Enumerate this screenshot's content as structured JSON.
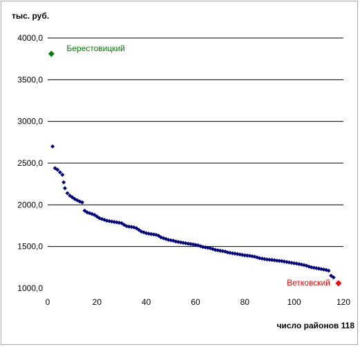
{
  "chart_data": {
    "type": "scatter",
    "ylabel": "тыс. руб.",
    "xlabel": "число районов 118",
    "xlim": [
      0,
      120
    ],
    "ylim": [
      1000,
      4000
    ],
    "x_ticks": [
      "0",
      "20",
      "40",
      "60",
      "80",
      "100",
      "120"
    ],
    "y_ticks": [
      "1000,0",
      "1500,0",
      "2000,0",
      "2500,0",
      "3000,0",
      "3500,0",
      "4000,0"
    ],
    "grid": true,
    "marker": "diamond",
    "colors": {
      "series": "#000080",
      "highlight_top": "#008000",
      "highlight_bottom": "#ff0000",
      "grid": "#000000"
    },
    "points": [
      [
        2,
        2700
      ],
      [
        3,
        2440
      ],
      [
        4,
        2420
      ],
      [
        5,
        2390
      ],
      [
        6,
        2360
      ],
      [
        6.5,
        2270
      ],
      [
        7,
        2200
      ],
      [
        8,
        2140
      ],
      [
        9,
        2110
      ],
      [
        10,
        2090
      ],
      [
        11,
        2070
      ],
      [
        12,
        2055
      ],
      [
        13,
        2040
      ],
      [
        14,
        2030
      ],
      [
        15,
        1930
      ],
      [
        16,
        1910
      ],
      [
        17,
        1900
      ],
      [
        18,
        1890
      ],
      [
        19,
        1880
      ],
      [
        20,
        1860
      ],
      [
        21,
        1840
      ],
      [
        22,
        1830
      ],
      [
        23,
        1820
      ],
      [
        24,
        1810
      ],
      [
        25,
        1805
      ],
      [
        26,
        1800
      ],
      [
        27,
        1795
      ],
      [
        28,
        1790
      ],
      [
        29,
        1785
      ],
      [
        30,
        1780
      ],
      [
        31,
        1760
      ],
      [
        32,
        1745
      ],
      [
        33,
        1740
      ],
      [
        34,
        1735
      ],
      [
        35,
        1730
      ],
      [
        36,
        1720
      ],
      [
        37,
        1700
      ],
      [
        38,
        1680
      ],
      [
        39,
        1670
      ],
      [
        40,
        1660
      ],
      [
        41,
        1655
      ],
      [
        42,
        1650
      ],
      [
        43,
        1645
      ],
      [
        44,
        1640
      ],
      [
        45,
        1630
      ],
      [
        46,
        1610
      ],
      [
        47,
        1600
      ],
      [
        48,
        1590
      ],
      [
        49,
        1580
      ],
      [
        50,
        1575
      ],
      [
        51,
        1570
      ],
      [
        52,
        1560
      ],
      [
        53,
        1555
      ],
      [
        54,
        1550
      ],
      [
        55,
        1545
      ],
      [
        56,
        1540
      ],
      [
        57,
        1535
      ],
      [
        58,
        1530
      ],
      [
        59,
        1525
      ],
      [
        60,
        1520
      ],
      [
        61,
        1515
      ],
      [
        62,
        1505
      ],
      [
        63,
        1495
      ],
      [
        64,
        1490
      ],
      [
        65,
        1485
      ],
      [
        66,
        1480
      ],
      [
        67,
        1470
      ],
      [
        68,
        1460
      ],
      [
        69,
        1455
      ],
      [
        70,
        1450
      ],
      [
        71,
        1445
      ],
      [
        72,
        1440
      ],
      [
        73,
        1430
      ],
      [
        74,
        1425
      ],
      [
        75,
        1420
      ],
      [
        76,
        1415
      ],
      [
        77,
        1410
      ],
      [
        78,
        1405
      ],
      [
        79,
        1400
      ],
      [
        80,
        1395
      ],
      [
        81,
        1392
      ],
      [
        82,
        1388
      ],
      [
        83,
        1383
      ],
      [
        84,
        1378
      ],
      [
        85,
        1370
      ],
      [
        86,
        1360
      ],
      [
        87,
        1355
      ],
      [
        88,
        1350
      ],
      [
        89,
        1345
      ],
      [
        90,
        1342
      ],
      [
        91,
        1340
      ],
      [
        92,
        1336
      ],
      [
        93,
        1332
      ],
      [
        94,
        1328
      ],
      [
        95,
        1325
      ],
      [
        96,
        1320
      ],
      [
        97,
        1315
      ],
      [
        98,
        1310
      ],
      [
        99,
        1305
      ],
      [
        100,
        1300
      ],
      [
        101,
        1295
      ],
      [
        102,
        1290
      ],
      [
        103,
        1285
      ],
      [
        104,
        1278
      ],
      [
        105,
        1270
      ],
      [
        106,
        1260
      ],
      [
        107,
        1252
      ],
      [
        108,
        1245
      ],
      [
        109,
        1240
      ],
      [
        110,
        1235
      ],
      [
        111,
        1230
      ],
      [
        112,
        1225
      ],
      [
        113,
        1220
      ],
      [
        114,
        1210
      ],
      [
        115,
        1150
      ],
      [
        116,
        1130
      ]
    ],
    "highlights": [
      {
        "label": "Берестовицкий",
        "x": 1.5,
        "y": 3810,
        "color": "#008000"
      },
      {
        "label": "Ветковский",
        "x": 118,
        "y": 1060,
        "color": "#ff0000"
      }
    ]
  }
}
